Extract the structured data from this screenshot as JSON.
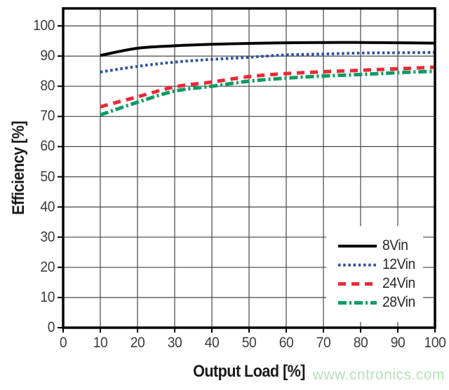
{
  "chart_data": {
    "type": "line",
    "title": "",
    "xlabel": "Output Load [%]",
    "ylabel": "Efficiency [%]",
    "x": [
      10,
      20,
      30,
      40,
      50,
      60,
      70,
      80,
      90,
      100
    ],
    "xlim": [
      0,
      100
    ],
    "ylim": [
      0,
      100
    ],
    "x_ticks": [
      0,
      10,
      20,
      30,
      40,
      50,
      60,
      70,
      80,
      90,
      100
    ],
    "y_ticks": [
      0,
      10,
      20,
      30,
      40,
      50,
      60,
      70,
      80,
      90,
      100
    ],
    "grid": true,
    "grid_color": "#454545",
    "frame_color": "#000000",
    "legend_position": "inside-bottom-right",
    "series": [
      {
        "name": "8Vin",
        "color": "#000000",
        "style": "solid",
        "values": [
          90.2,
          92.6,
          93.4,
          93.9,
          94.2,
          94.4,
          94.5,
          94.5,
          94.4,
          94.3
        ]
      },
      {
        "name": "12Vin",
        "color": "#2c50a3",
        "style": "dotted",
        "values": [
          84.7,
          86.6,
          88.0,
          88.9,
          89.6,
          90.4,
          90.7,
          91.0,
          91.1,
          91.2
        ]
      },
      {
        "name": "24Vin",
        "color": "#e92a38",
        "style": "dashed",
        "values": [
          73.2,
          76.5,
          79.8,
          81.4,
          83.2,
          84.2,
          84.8,
          85.3,
          85.8,
          86.3
        ]
      },
      {
        "name": "28Vin",
        "color": "#0c9c62",
        "style": "dashdot",
        "values": [
          70.5,
          74.7,
          78.4,
          80.0,
          81.7,
          82.7,
          83.4,
          83.9,
          84.5,
          85.0
        ]
      }
    ]
  },
  "watermark": {
    "text": "www.cntronics.com",
    "color": "#b5e2b5"
  }
}
